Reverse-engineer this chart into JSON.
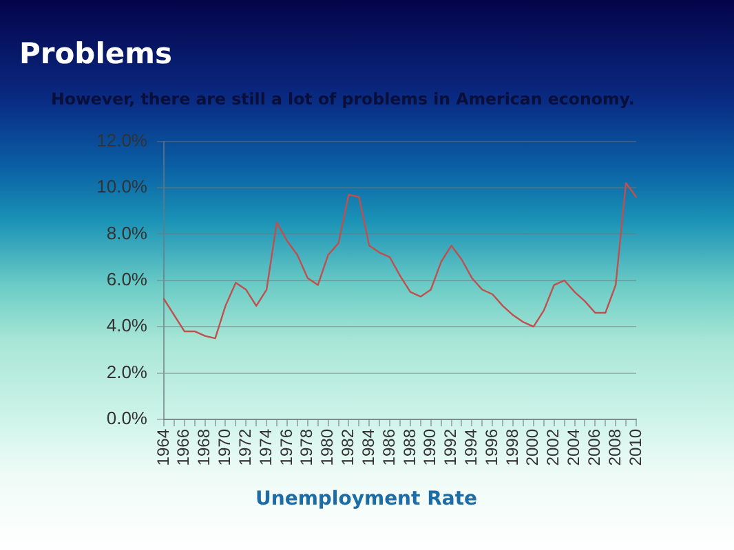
{
  "chart_data": {
    "type": "line",
    "title": "Problems",
    "subtitle": "However, there are still a lot of problems in American economy.",
    "xlabel": "Unemployment Rate",
    "categories": [
      "1964",
      null,
      "1966",
      null,
      "1968",
      null,
      "1970",
      null,
      "1972",
      null,
      "1974",
      null,
      "1976",
      null,
      "1978",
      null,
      "1980",
      null,
      "1982",
      null,
      "1984",
      null,
      "1986",
      null,
      "1988",
      null,
      "1990",
      null,
      "1992",
      null,
      "1994",
      null,
      "1996",
      null,
      "1998",
      null,
      "2000",
      null,
      "2002",
      null,
      "2004",
      null,
      "2006",
      null,
      "2008",
      null,
      "2010"
    ],
    "series": [
      {
        "color": "#c0504d",
        "values": [
          5.2,
          4.5,
          3.8,
          3.8,
          3.6,
          3.5,
          4.9,
          5.9,
          5.6,
          4.9,
          5.6,
          8.5,
          7.7,
          7.1,
          6.1,
          5.8,
          7.1,
          7.6,
          9.7,
          9.6,
          7.5,
          7.2,
          7.0,
          6.2,
          5.5,
          5.3,
          5.6,
          6.8,
          7.5,
          6.9,
          6.1,
          5.6,
          5.4,
          4.9,
          4.5,
          4.2,
          4.0,
          4.7,
          5.8,
          6.0,
          5.5,
          5.1,
          4.6,
          4.6,
          5.8,
          10.2,
          9.6
        ]
      }
    ],
    "ylim": [
      0,
      12
    ],
    "yticks": [
      {
        "value": 0,
        "label": "0.0%"
      },
      {
        "value": 2,
        "label": "2.0%"
      },
      {
        "value": 4,
        "label": "4.0%"
      },
      {
        "value": 6,
        "label": "6.0%"
      },
      {
        "value": 8,
        "label": "8.0%"
      },
      {
        "value": 10,
        "label": "10.0%"
      },
      {
        "value": 12,
        "label": "12.0%"
      }
    ],
    "grid": "y",
    "line_style": "solid"
  }
}
